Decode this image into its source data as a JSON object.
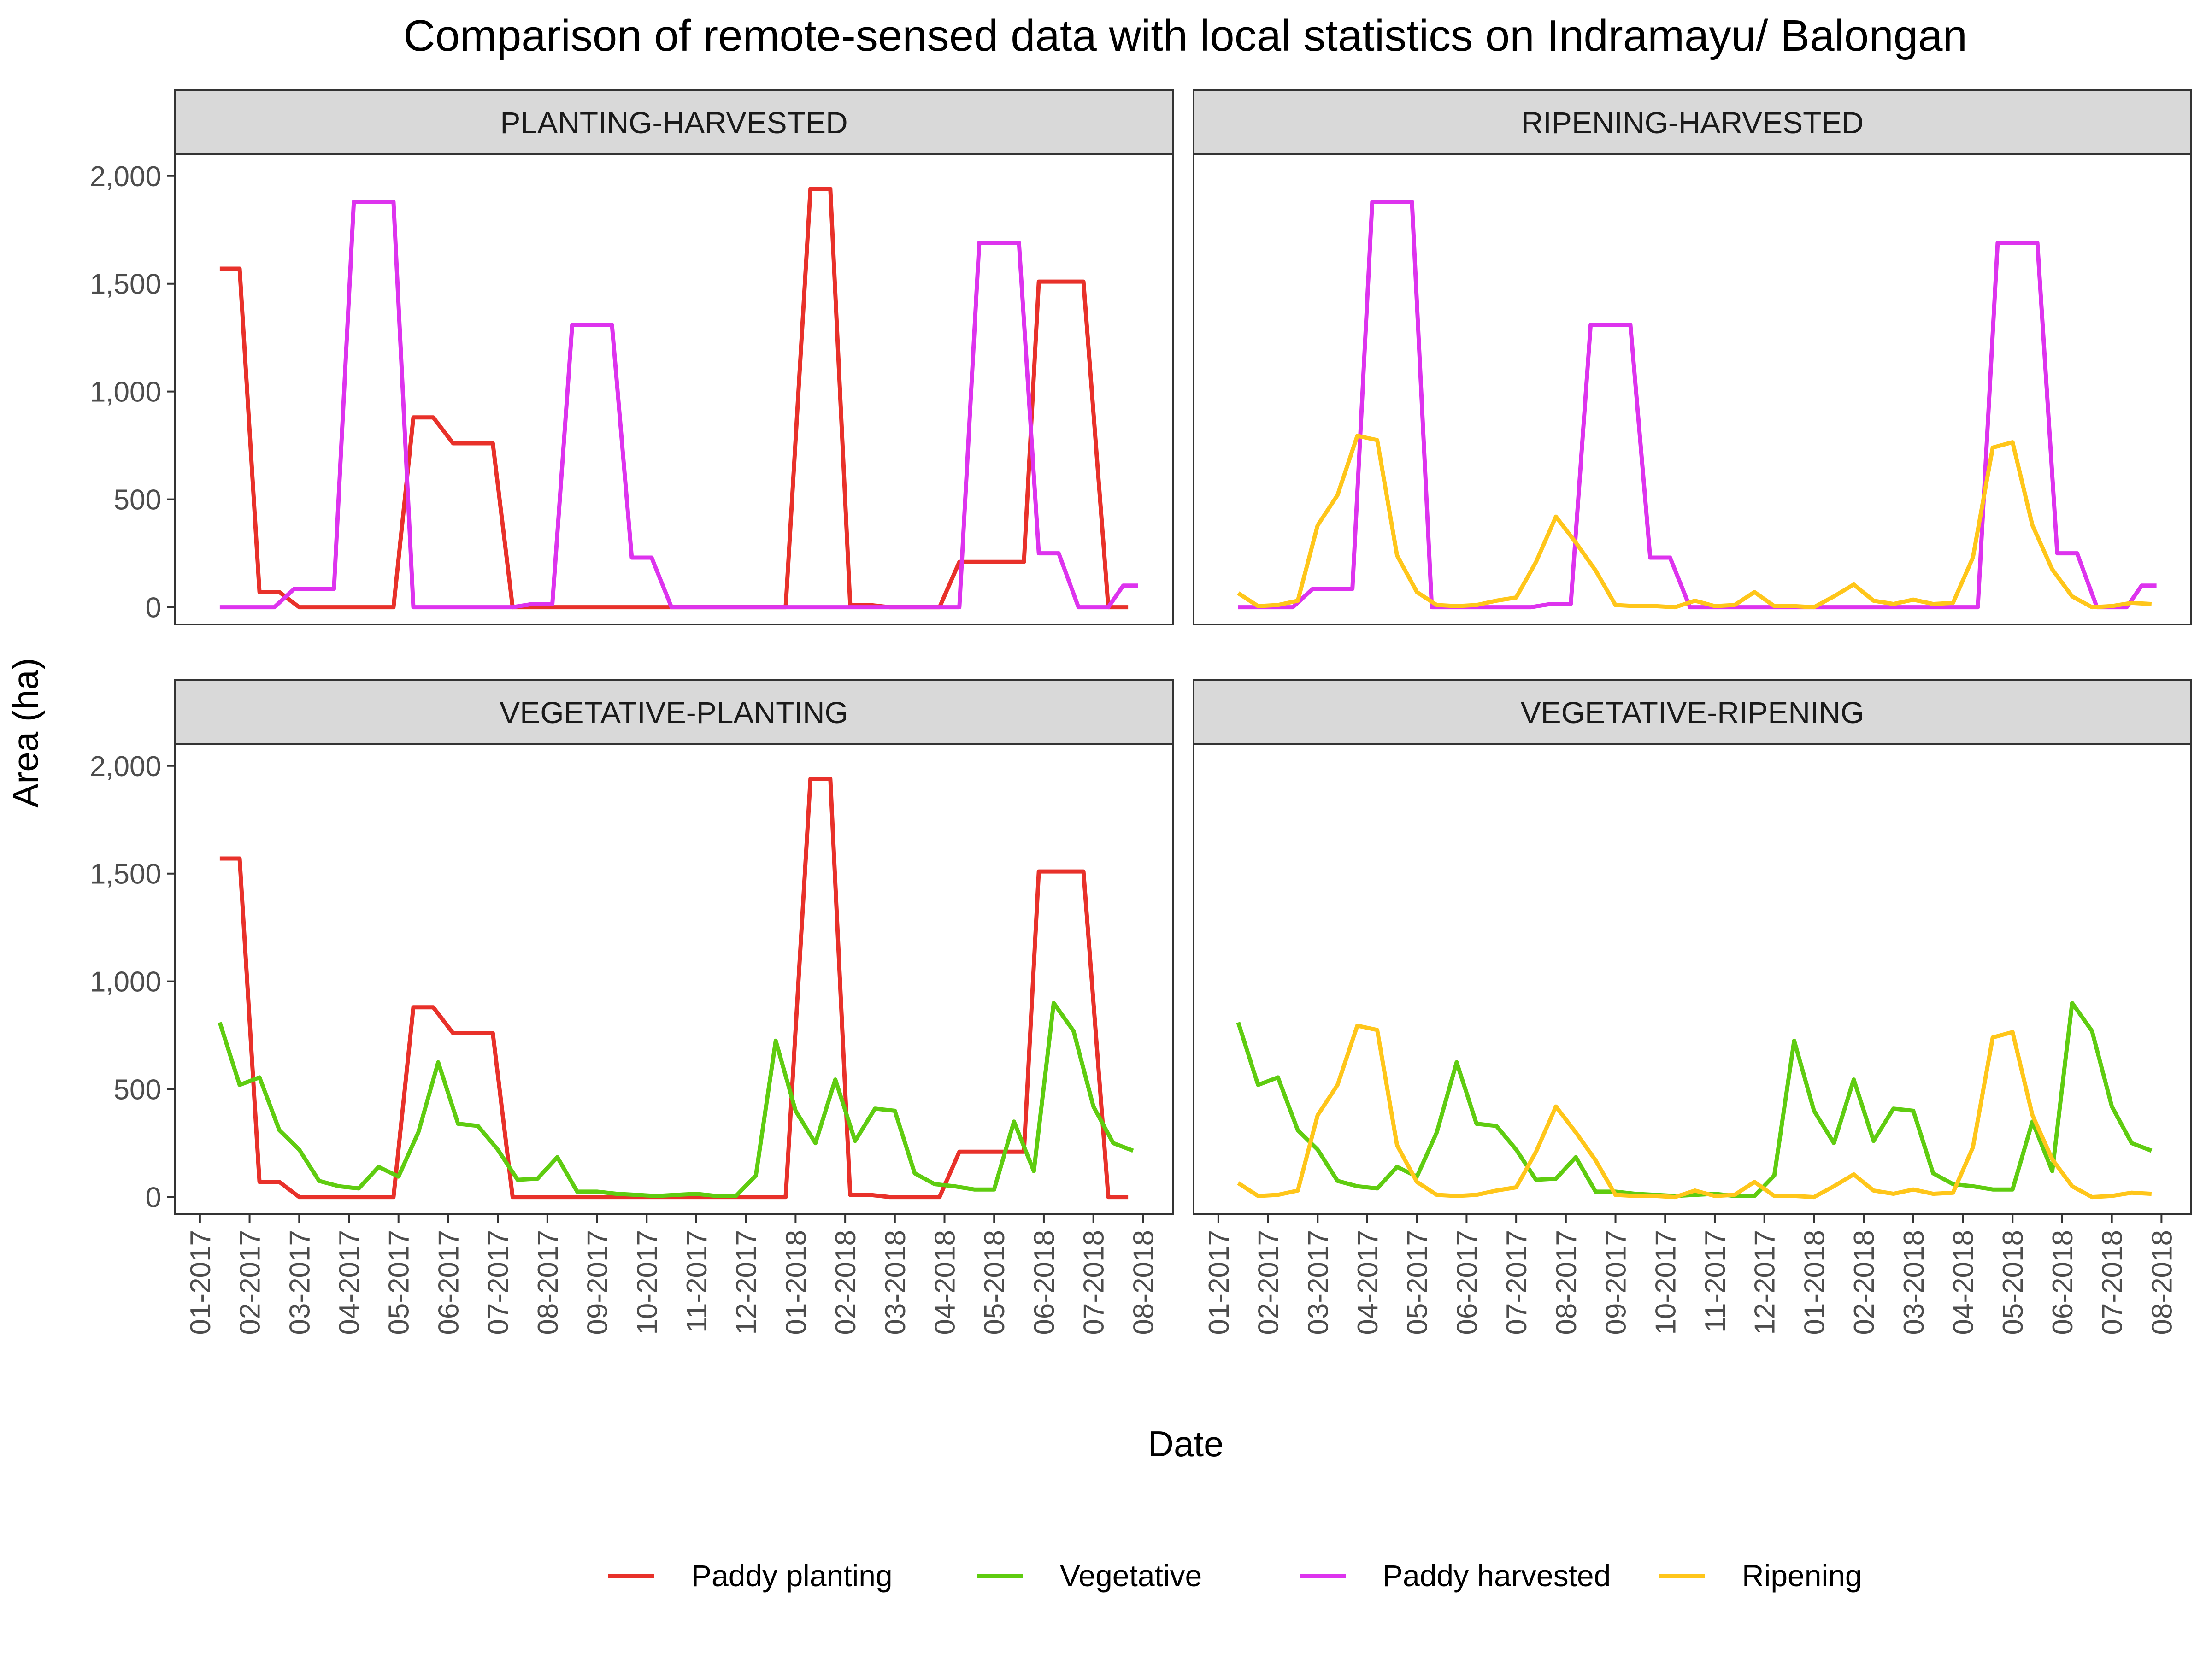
{
  "chart_data": {
    "type": "line",
    "title": "Comparison of remote-sensed data with local statistics on Indramayu/ Balongan",
    "xlabel": "Date",
    "ylabel": "Area (ha)",
    "ylim": [
      -80,
      2100
    ],
    "y_ticks": [
      0,
      500,
      1000,
      1500,
      2000
    ],
    "y_tick_labels": [
      "0",
      "500",
      "1,000",
      "1,500",
      "2,000"
    ],
    "x_tick_labels": [
      "01-2017",
      "02-2017",
      "03-2017",
      "04-2017",
      "05-2017",
      "06-2017",
      "07-2017",
      "08-2017",
      "09-2017",
      "10-2017",
      "11-2017",
      "12-2017",
      "01-2018",
      "02-2018",
      "03-2018",
      "04-2018",
      "05-2018",
      "06-2018",
      "07-2018",
      "08-2018"
    ],
    "grid": false,
    "legend_position": "bottom",
    "panels": [
      {
        "title": "PLANTING-HARVESTED",
        "series": [
          "Paddy planting",
          "Paddy harvested"
        ]
      },
      {
        "title": "RIPENING-HARVESTED",
        "series": [
          "Paddy harvested",
          "Ripening"
        ]
      },
      {
        "title": "VEGETATIVE-PLANTING",
        "series": [
          "Paddy planting",
          "Vegetative"
        ]
      },
      {
        "title": "VEGETATIVE-RIPENING",
        "series": [
          "Vegetative",
          "Ripening"
        ]
      }
    ],
    "series": [
      {
        "name": "Paddy planting",
        "color": "#e8312a",
        "points": [
          [
            0.4,
            1570
          ],
          [
            0.8,
            1570
          ],
          [
            1.2,
            70
          ],
          [
            1.6,
            70
          ],
          [
            2.0,
            0
          ],
          [
            3.9,
            0
          ],
          [
            4.3,
            880
          ],
          [
            4.7,
            880
          ],
          [
            5.1,
            760
          ],
          [
            5.5,
            760
          ],
          [
            5.9,
            760
          ],
          [
            6.3,
            0
          ],
          [
            11.8,
            0
          ],
          [
            12.3,
            1940
          ],
          [
            12.7,
            1940
          ],
          [
            13.1,
            10
          ],
          [
            13.5,
            10
          ],
          [
            13.9,
            0
          ],
          [
            14.9,
            0
          ],
          [
            15.3,
            210
          ],
          [
            15.7,
            210
          ],
          [
            16.1,
            210
          ],
          [
            16.6,
            210
          ],
          [
            16.9,
            1510
          ],
          [
            17.3,
            1510
          ],
          [
            17.8,
            1510
          ],
          [
            18.3,
            0
          ],
          [
            18.7,
            0
          ]
        ]
      },
      {
        "name": "Vegetative",
        "color": "#5fcc10",
        "points": [
          [
            0.4,
            810
          ],
          [
            0.8,
            520
          ],
          [
            1.2,
            555
          ],
          [
            1.6,
            310
          ],
          [
            2.0,
            220
          ],
          [
            2.4,
            75
          ],
          [
            2.8,
            50
          ],
          [
            3.2,
            40
          ],
          [
            3.6,
            140
          ],
          [
            4.0,
            95
          ],
          [
            4.4,
            300
          ],
          [
            4.8,
            625
          ],
          [
            5.2,
            340
          ],
          [
            5.6,
            330
          ],
          [
            6.0,
            220
          ],
          [
            6.4,
            80
          ],
          [
            6.8,
            85
          ],
          [
            7.2,
            185
          ],
          [
            7.6,
            25
          ],
          [
            8.0,
            25
          ],
          [
            8.4,
            15
          ],
          [
            8.8,
            10
          ],
          [
            9.2,
            5
          ],
          [
            9.6,
            10
          ],
          [
            10.0,
            15
          ],
          [
            10.4,
            5
          ],
          [
            10.8,
            5
          ],
          [
            11.2,
            100
          ],
          [
            11.6,
            725
          ],
          [
            12.0,
            400
          ],
          [
            12.4,
            250
          ],
          [
            12.8,
            545
          ],
          [
            13.2,
            260
          ],
          [
            13.6,
            410
          ],
          [
            14.0,
            400
          ],
          [
            14.4,
            110
          ],
          [
            14.8,
            60
          ],
          [
            15.2,
            50
          ],
          [
            15.6,
            35
          ],
          [
            16.0,
            35
          ],
          [
            16.4,
            350
          ],
          [
            16.8,
            120
          ],
          [
            17.2,
            900
          ],
          [
            17.6,
            770
          ],
          [
            18.0,
            420
          ],
          [
            18.4,
            250
          ],
          [
            18.8,
            215
          ]
        ]
      },
      {
        "name": "Paddy harvested",
        "color": "#dd33ee",
        "points": [
          [
            0.4,
            0
          ],
          [
            1.5,
            0
          ],
          [
            1.9,
            85
          ],
          [
            2.3,
            85
          ],
          [
            2.7,
            85
          ],
          [
            3.1,
            1880
          ],
          [
            3.5,
            1880
          ],
          [
            3.9,
            1880
          ],
          [
            4.3,
            0
          ],
          [
            6.3,
            0
          ],
          [
            6.7,
            15
          ],
          [
            7.1,
            15
          ],
          [
            7.5,
            1310
          ],
          [
            7.9,
            1310
          ],
          [
            8.3,
            1310
          ],
          [
            8.7,
            230
          ],
          [
            9.1,
            230
          ],
          [
            9.5,
            0
          ],
          [
            15.3,
            0
          ],
          [
            15.7,
            1690
          ],
          [
            16.1,
            1690
          ],
          [
            16.5,
            1690
          ],
          [
            16.9,
            250
          ],
          [
            17.3,
            250
          ],
          [
            17.7,
            0
          ],
          [
            18.3,
            0
          ],
          [
            18.6,
            100
          ],
          [
            18.9,
            100
          ]
        ]
      },
      {
        "name": "Ripening",
        "color": "#ffc61a",
        "points": [
          [
            0.4,
            65
          ],
          [
            0.8,
            5
          ],
          [
            1.2,
            10
          ],
          [
            1.6,
            30
          ],
          [
            2.0,
            380
          ],
          [
            2.4,
            520
          ],
          [
            2.8,
            795
          ],
          [
            3.2,
            775
          ],
          [
            3.6,
            240
          ],
          [
            4.0,
            70
          ],
          [
            4.4,
            10
          ],
          [
            4.8,
            5
          ],
          [
            5.2,
            10
          ],
          [
            5.6,
            30
          ],
          [
            6.0,
            45
          ],
          [
            6.4,
            210
          ],
          [
            6.8,
            420
          ],
          [
            7.2,
            300
          ],
          [
            7.6,
            170
          ],
          [
            8.0,
            10
          ],
          [
            8.4,
            5
          ],
          [
            8.8,
            5
          ],
          [
            9.2,
            0
          ],
          [
            9.6,
            30
          ],
          [
            10.0,
            5
          ],
          [
            10.4,
            10
          ],
          [
            10.8,
            70
          ],
          [
            11.2,
            5
          ],
          [
            11.6,
            5
          ],
          [
            12.0,
            0
          ],
          [
            12.4,
            50
          ],
          [
            12.8,
            105
          ],
          [
            13.2,
            30
          ],
          [
            13.6,
            15
          ],
          [
            14.0,
            35
          ],
          [
            14.4,
            15
          ],
          [
            14.8,
            20
          ],
          [
            15.2,
            230
          ],
          [
            15.6,
            740
          ],
          [
            16.0,
            765
          ],
          [
            16.4,
            380
          ],
          [
            16.8,
            175
          ],
          [
            17.2,
            50
          ],
          [
            17.6,
            0
          ],
          [
            18.0,
            5
          ],
          [
            18.4,
            20
          ],
          [
            18.8,
            15
          ]
        ]
      }
    ]
  }
}
